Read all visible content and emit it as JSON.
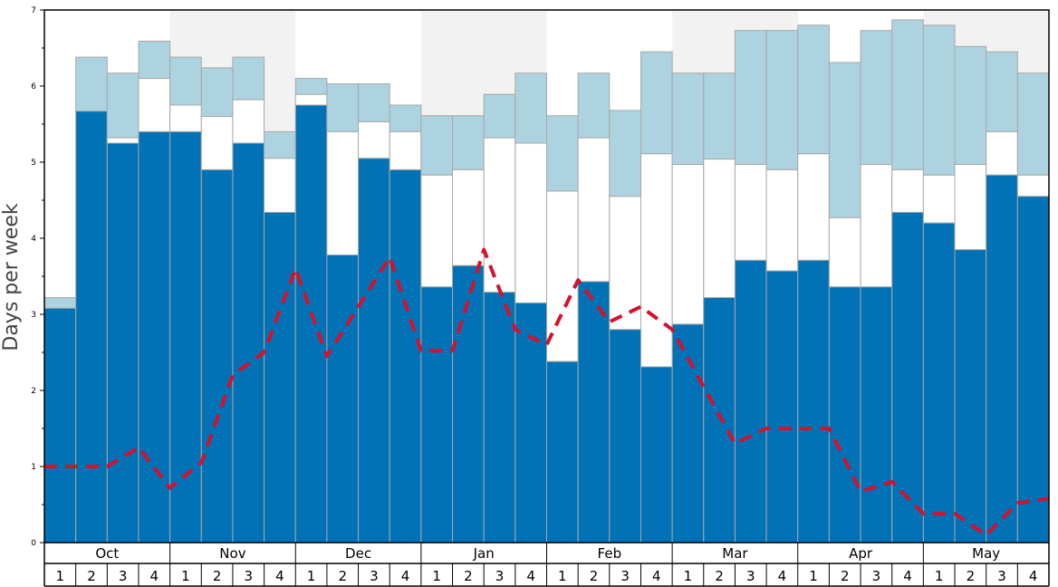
{
  "chart_data": {
    "type": "bar",
    "ylabel": "Days per week",
    "ylim": [
      0,
      7
    ],
    "yticks": [
      "0",
      "1",
      "2",
      "3",
      "4",
      "5",
      "6",
      "7"
    ],
    "months": [
      "Oct",
      "Nov",
      "Dec",
      "Jan",
      "Feb",
      "Mar",
      "Apr",
      "May"
    ],
    "weeks_per_month": [
      "1",
      "2",
      "3",
      "4"
    ],
    "shaded_months": [
      1,
      3,
      5,
      7
    ],
    "colors": {
      "base": "#0072b5",
      "middle": "#ffffff",
      "top": "#add3e0",
      "line": "#d6112e",
      "shade": "#f2f2f2",
      "bar_edge": "#a8a8a8"
    },
    "series": [
      {
        "values": [
          3.08,
          5.67,
          5.25,
          5.4,
          5.4,
          4.9,
          5.25,
          4.34,
          5.75,
          3.78,
          5.05,
          4.9,
          3.36,
          3.64,
          3.29,
          3.15,
          2.38,
          3.43,
          2.8,
          2.31,
          2.87,
          3.22,
          3.71,
          3.57,
          3.71,
          3.36,
          3.36,
          4.34,
          4.2,
          3.85,
          4.83,
          4.55
        ]
      },
      {
        "values": [
          3.08,
          5.67,
          5.32,
          6.1,
          5.75,
          5.6,
          5.82,
          5.05,
          5.89,
          5.4,
          5.53,
          5.4,
          4.83,
          4.9,
          5.32,
          5.25,
          4.62,
          5.32,
          4.55,
          5.11,
          4.97,
          5.04,
          4.97,
          4.9,
          5.11,
          4.27,
          4.97,
          4.9,
          4.83,
          4.97,
          5.4,
          4.83
        ]
      },
      {
        "values": [
          3.22,
          6.38,
          6.17,
          6.59,
          6.38,
          6.24,
          6.38,
          5.4,
          6.1,
          6.03,
          6.03,
          5.75,
          5.61,
          5.61,
          5.89,
          6.17,
          5.61,
          6.17,
          5.68,
          6.45,
          6.17,
          6.17,
          6.73,
          6.73,
          6.8,
          6.31,
          6.73,
          6.87,
          6.8,
          6.52,
          6.45,
          6.17
        ]
      },
      {
        "values": [
          1.0,
          1.0,
          1.0,
          1.25,
          0.72,
          1.05,
          2.2,
          2.5,
          3.6,
          2.45,
          3.1,
          3.75,
          2.52,
          2.52,
          3.85,
          2.8,
          2.6,
          3.45,
          2.9,
          3.1,
          2.8,
          2.05,
          1.3,
          1.5,
          1.5,
          1.5,
          0.67,
          0.8,
          0.38,
          0.38,
          0.1,
          0.52,
          0.58
        ]
      }
    ]
  }
}
